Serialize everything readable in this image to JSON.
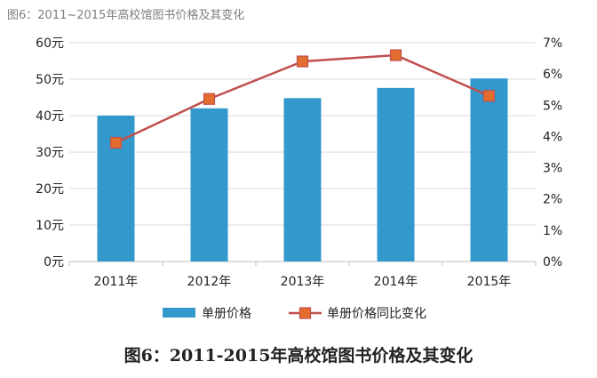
{
  "top_caption": "图6：2011~2015年高校馆图书价格及其变化",
  "bottom_caption": "图6：2011-2015年高校馆图书价格及其变化",
  "colors": {
    "bar": "#3399cc",
    "line": "#c0504d",
    "marker": "#e36c2f",
    "grid": "#d9d9d9"
  },
  "chart_data": {
    "type": "bar",
    "title": "",
    "categories": [
      "2011年",
      "2012年",
      "2013年",
      "2014年",
      "2015年"
    ],
    "series": [
      {
        "name": "单册价格",
        "type": "bar",
        "axis": "left",
        "values": [
          40,
          42,
          44.8,
          47.6,
          50.2
        ]
      },
      {
        "name": "单册价格同比变化",
        "type": "line",
        "axis": "right",
        "values": [
          3.8,
          5.2,
          6.4,
          6.6,
          5.3
        ]
      }
    ],
    "left_axis": {
      "min": 0,
      "max": 60,
      "step": 10,
      "ticks": [
        "0元",
        "10元",
        "20元",
        "30元",
        "40元",
        "50元",
        "60元"
      ]
    },
    "right_axis": {
      "min": 0,
      "max": 7,
      "step": 1,
      "ticks": [
        "0%",
        "1%",
        "2%",
        "3%",
        "4%",
        "5%",
        "6%",
        "7%"
      ]
    },
    "grid": true,
    "legend_position": "bottom"
  }
}
